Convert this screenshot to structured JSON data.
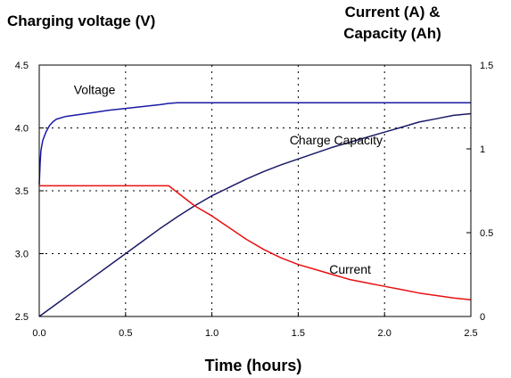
{
  "chart_data": {
    "type": "line",
    "title_left": "Charging voltage (V)",
    "title_right_line1": "Current (A) &",
    "title_right_line2": "Capacity (Ah)",
    "xlabel": "Time (hours)",
    "xlim": [
      0,
      2.5
    ],
    "ylim_left": [
      2.5,
      4.5
    ],
    "ylim_right": [
      0,
      1.5
    ],
    "x_ticks": [
      "0.0",
      "0.5",
      "1.0",
      "1.5",
      "2.0",
      "2.5"
    ],
    "y_left_ticks": [
      "2.5",
      "3.0",
      "3.5",
      "4.0",
      "4.5"
    ],
    "y_right_ticks": [
      "0",
      "0.5",
      "1",
      "1.5"
    ],
    "grid": "dashed",
    "series": [
      {
        "name": "Voltage",
        "axis": "left",
        "color": "#1a1aa6",
        "x": [
          0,
          0.005,
          0.01,
          0.02,
          0.04,
          0.06,
          0.08,
          0.1,
          0.15,
          0.2,
          0.3,
          0.4,
          0.5,
          0.6,
          0.7,
          0.75,
          0.8,
          1.0,
          1.5,
          2.0,
          2.5
        ],
        "y": [
          3.55,
          3.72,
          3.82,
          3.9,
          3.97,
          4.02,
          4.05,
          4.07,
          4.09,
          4.1,
          4.12,
          4.14,
          4.155,
          4.17,
          4.185,
          4.195,
          4.2,
          4.2,
          4.2,
          4.2,
          4.2
        ]
      },
      {
        "name": "Charge Capacity",
        "axis": "right",
        "color": "#1a1a66",
        "x": [
          0,
          0.1,
          0.2,
          0.3,
          0.4,
          0.5,
          0.6,
          0.7,
          0.75,
          0.8,
          0.9,
          1.0,
          1.1,
          1.2,
          1.3,
          1.4,
          1.5,
          1.6,
          1.7,
          1.8,
          1.9,
          2.0,
          2.1,
          2.2,
          2.3,
          2.4,
          2.5
        ],
        "y": [
          0,
          0.075,
          0.15,
          0.225,
          0.3,
          0.375,
          0.45,
          0.525,
          0.56,
          0.595,
          0.66,
          0.72,
          0.77,
          0.82,
          0.865,
          0.905,
          0.94,
          0.975,
          1.01,
          1.04,
          1.07,
          1.1,
          1.13,
          1.16,
          1.18,
          1.2,
          1.21
        ]
      },
      {
        "name": "Current",
        "axis": "right",
        "color": "#e81010",
        "x": [
          0,
          0.75,
          0.8,
          0.9,
          1.0,
          1.1,
          1.2,
          1.3,
          1.4,
          1.5,
          1.6,
          1.7,
          1.8,
          1.9,
          2.0,
          2.1,
          2.2,
          2.3,
          2.4,
          2.5
        ],
        "y": [
          0.78,
          0.78,
          0.74,
          0.66,
          0.6,
          0.53,
          0.46,
          0.4,
          0.35,
          0.31,
          0.28,
          0.25,
          0.22,
          0.2,
          0.18,
          0.16,
          0.14,
          0.125,
          0.11,
          0.1
        ]
      }
    ],
    "annotations": [
      {
        "text": "Voltage",
        "x": 0.2,
        "y": 4.27,
        "axis": "left"
      },
      {
        "text": "Charge Capacity",
        "x": 1.45,
        "y": 3.87,
        "axis": "left"
      },
      {
        "text": "Current",
        "x": 1.68,
        "y": 2.84,
        "axis": "left"
      }
    ]
  }
}
